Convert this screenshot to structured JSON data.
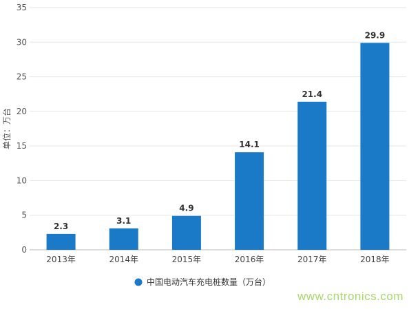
{
  "chart_data": {
    "type": "bar",
    "categories": [
      "2013年",
      "2014年",
      "2015年",
      "2016年",
      "2017年",
      "2018年"
    ],
    "series": [
      {
        "name": "中国电动汽车充电桩数量（万台）",
        "values": [
          2.3,
          3.1,
          4.9,
          14.1,
          21.4,
          29.9
        ],
        "color": "#1a7ac7"
      }
    ],
    "data_labels": [
      "2.3",
      "3.1",
      "4.9",
      "14.1",
      "21.4",
      "29.9"
    ],
    "ylabel": "单位：万台",
    "xlabel": "",
    "ylim": [
      0,
      35
    ],
    "yticks": [
      0,
      5,
      10,
      15,
      20,
      25,
      30,
      35
    ],
    "grid": true,
    "legend_position": "bottom"
  },
  "legend": {
    "label": "中国电动汽车充电桩数量（万台）"
  },
  "watermark": "www.cntronics.com"
}
